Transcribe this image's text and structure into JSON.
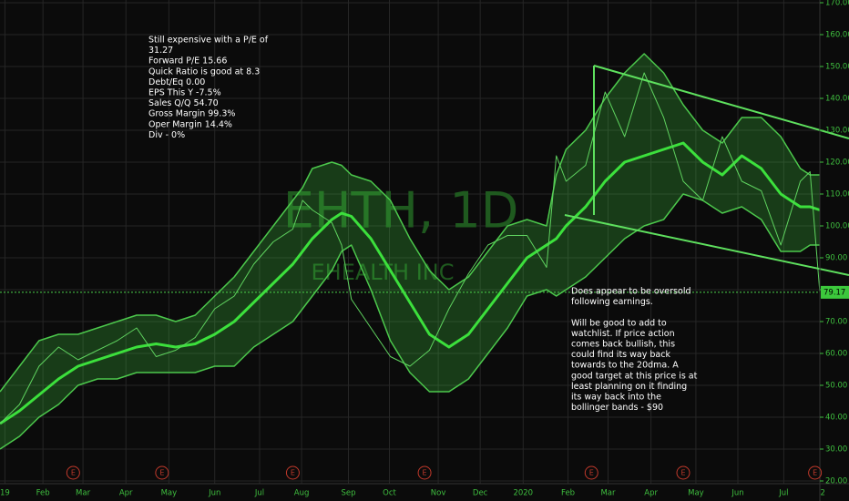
{
  "chart_data": {
    "type": "line",
    "watermark": {
      "symbol": "EHTH, 1D",
      "name": "EHEALTH INC"
    },
    "x": [
      0,
      2,
      4,
      6,
      8,
      10,
      12,
      14,
      16,
      18,
      20,
      22,
      24,
      26,
      28,
      30,
      31,
      32,
      34,
      35,
      36,
      38,
      40,
      42,
      44,
      46,
      48,
      50,
      52,
      54,
      56,
      57,
      58,
      60,
      62,
      64,
      66,
      68,
      70,
      72,
      74,
      76,
      78,
      80,
      82,
      83,
      84
    ],
    "series": [
      {
        "color": "#5fd35f",
        "values": [
          38,
          44,
          56,
          62,
          58,
          61,
          64,
          68,
          59,
          61,
          65,
          74,
          78,
          88,
          95,
          99,
          108,
          105,
          101,
          94,
          77,
          68,
          59,
          56,
          61,
          74,
          85,
          94,
          97,
          97,
          87,
          122,
          114,
          119,
          142,
          128,
          148,
          134,
          114,
          108,
          128,
          114,
          111,
          94,
          114,
          117,
          79
        ]
      },
      {
        "color": "#3ce03c",
        "values": [
          38,
          42,
          47,
          52,
          56,
          58,
          60,
          62,
          63,
          62,
          63,
          66,
          70,
          76,
          82,
          88,
          92,
          96,
          102,
          104,
          103,
          96,
          86,
          76,
          66,
          62,
          66,
          74,
          82,
          90,
          94,
          96,
          100,
          106,
          114,
          120,
          122,
          124,
          126,
          120,
          116,
          122,
          118,
          110,
          106,
          106,
          105
        ]
      },
      {
        "color": "#4cc84c",
        "values": [
          48,
          56,
          64,
          66,
          66,
          68,
          70,
          72,
          72,
          70,
          72,
          78,
          84,
          92,
          100,
          108,
          112,
          118,
          120,
          119,
          116,
          114,
          108,
          96,
          86,
          80,
          84,
          92,
          100,
          102,
          100,
          116,
          124,
          130,
          140,
          148,
          154,
          148,
          138,
          130,
          126,
          134,
          134,
          128,
          118,
          116,
          116
        ]
      },
      {
        "color": "#4cc84c",
        "values": [
          30,
          34,
          40,
          44,
          50,
          52,
          52,
          54,
          54,
          54,
          54,
          56,
          56,
          62,
          66,
          70,
          74,
          78,
          86,
          92,
          94,
          80,
          64,
          54,
          48,
          48,
          52,
          60,
          68,
          78,
          80,
          78,
          80,
          84,
          90,
          96,
          100,
          102,
          110,
          108,
          104,
          106,
          102,
          92,
          92,
          94,
          94
        ]
      }
    ],
    "band_fill": "rgba(60,190,60,0.28)",
    "last_price": {
      "value": 79.17,
      "label": "79.17"
    },
    "earnings": {
      "label": "E",
      "x": [
        7.5,
        16.6,
        30,
        43.5,
        60.6,
        70,
        83.5
      ]
    },
    "xlim": [
      0,
      84
    ],
    "xticks": [
      {
        "value": 0.5,
        "label": "19"
      },
      {
        "value": 4.4,
        "label": "Feb"
      },
      {
        "value": 8.5,
        "label": "Mar"
      },
      {
        "value": 12.9,
        "label": "Apr"
      },
      {
        "value": 17.3,
        "label": "May"
      },
      {
        "value": 22.0,
        "label": "Jun"
      },
      {
        "value": 26.6,
        "label": "Jul"
      },
      {
        "value": 30.9,
        "label": "Aug"
      },
      {
        "value": 35.7,
        "label": "Sep"
      },
      {
        "value": 39.9,
        "label": "Oct"
      },
      {
        "value": 44.9,
        "label": "Nov"
      },
      {
        "value": 49.2,
        "label": "Dec"
      },
      {
        "value": 53.6,
        "label": "2020"
      },
      {
        "value": 58.2,
        "label": "Feb"
      },
      {
        "value": 62.3,
        "label": "Mar"
      },
      {
        "value": 66.7,
        "label": "Apr"
      },
      {
        "value": 71.3,
        "label": "May"
      },
      {
        "value": 75.6,
        "label": "Jun"
      },
      {
        "value": 80.3,
        "label": "Jul"
      },
      {
        "value": 84.3,
        "label": "2"
      }
    ],
    "ylim": [
      20,
      170
    ],
    "yticks": [
      {
        "value": 20,
        "label": "20.00"
      },
      {
        "value": 30,
        "label": "30.00"
      },
      {
        "value": 40,
        "label": "40.00"
      },
      {
        "value": 50,
        "label": "50.00"
      },
      {
        "value": 60,
        "label": "60.00"
      },
      {
        "value": 70,
        "label": "70.00"
      },
      {
        "value": 80,
        "label": "80.00"
      },
      {
        "value": 90,
        "label": "90.00"
      },
      {
        "value": 100,
        "label": "100.00"
      },
      {
        "value": 110,
        "label": "110.00"
      },
      {
        "value": 120,
        "label": "120.00"
      },
      {
        "value": 130,
        "label": "130.00"
      },
      {
        "value": 140,
        "label": "140.00"
      },
      {
        "value": 150,
        "label": "150.00"
      },
      {
        "value": 160,
        "label": "160.00"
      },
      {
        "value": 170,
        "label": "170.00"
      }
    ],
    "grid": true,
    "annotations": [
      {
        "lines": [
          "Still expensive with a P/E of",
          "31.27",
          "Forward P/E 15.66",
          "Quick Ratio is good at 8.3",
          "Debt/Eq 0.00",
          "EPS This Y -7.5%",
          "Sales Q/Q 54.70",
          "Gross Margin 99.3%",
          "Oper Margin 14.4%",
          "Div - 0%"
        ]
      },
      {
        "lines": [
          "Does appear to be oversold",
          "following earnings.",
          "",
          "Will be good to add to",
          "watchlist.  If price action",
          "comes back bullish, this",
          "could find its way back",
          "towards to the 20dma.  A",
          "good target at this price is at",
          "least planning on it finding",
          "its way back into the",
          "bollinger bands - $90"
        ]
      }
    ]
  }
}
